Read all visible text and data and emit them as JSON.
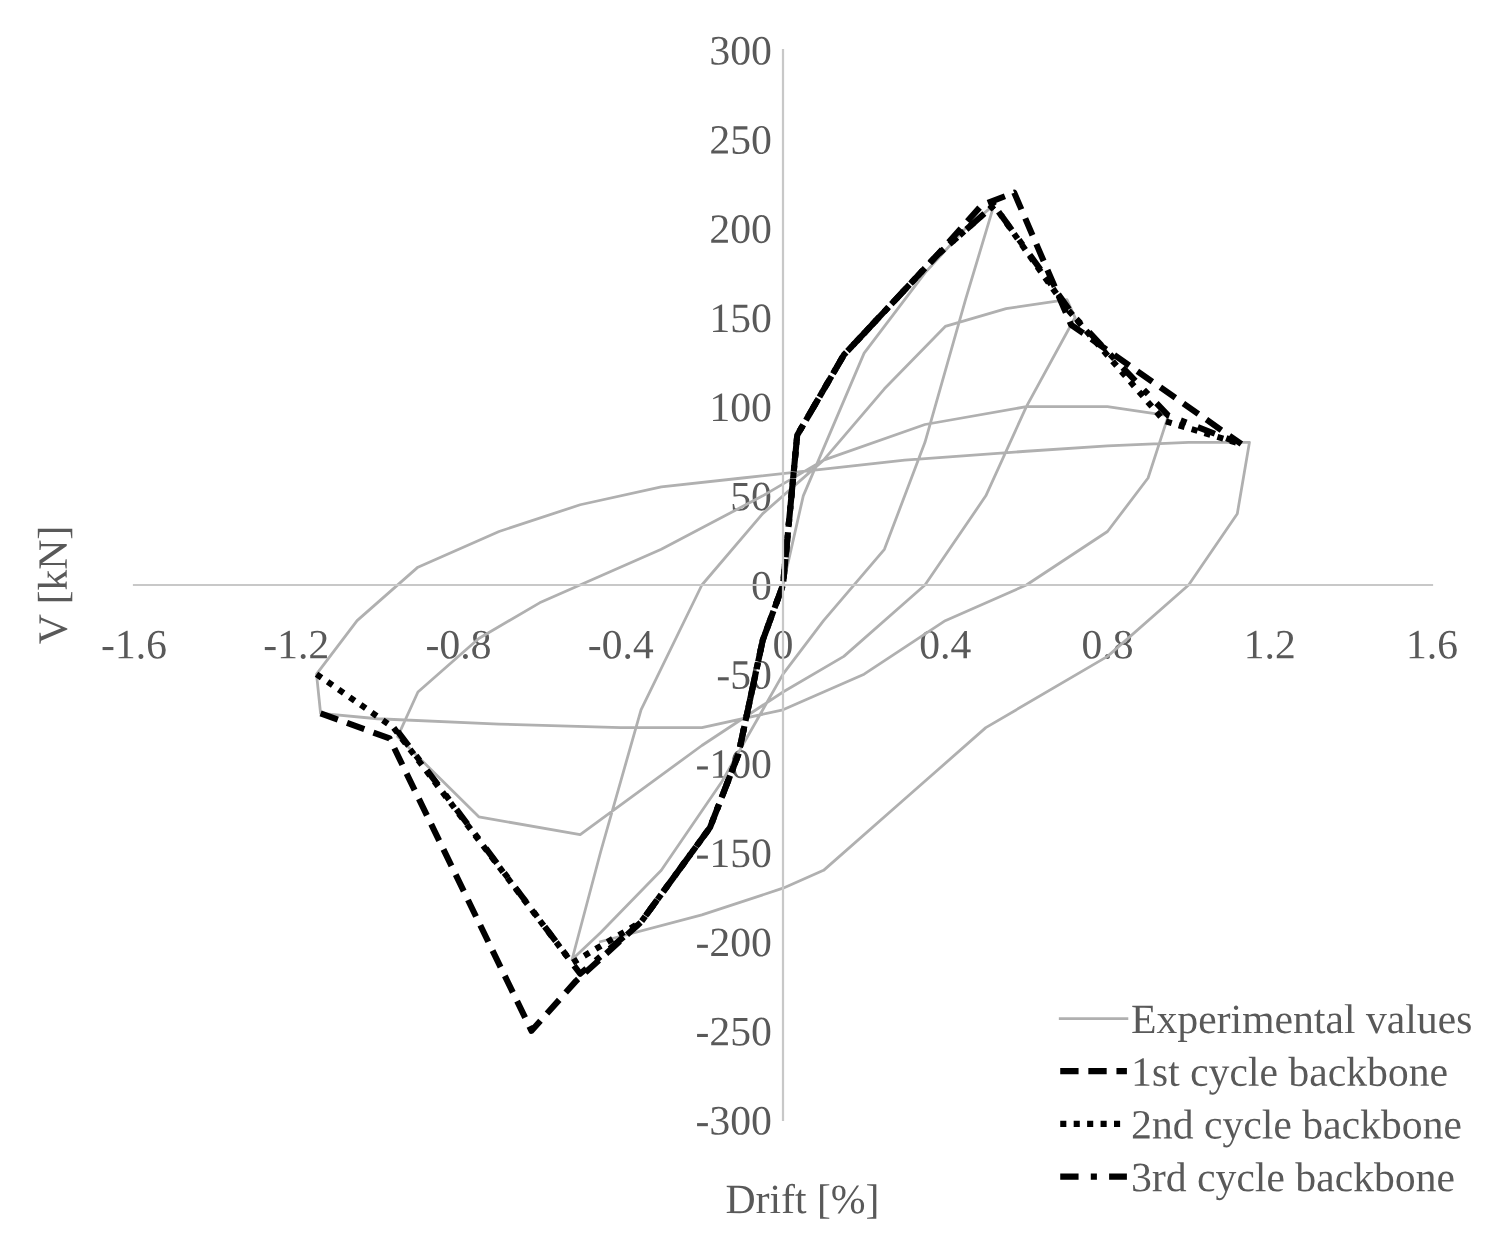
{
  "chart_data": {
    "type": "line",
    "xlabel": "Drift [%]",
    "ylabel": "V [kN]",
    "xlim": [
      -1.6,
      1.6
    ],
    "xticks": [
      -1.6,
      -1.2,
      -0.8,
      -0.4,
      0,
      0.4,
      0.8,
      1.2,
      1.6
    ],
    "ylim": [
      -300,
      300
    ],
    "yticks": [
      -300,
      -250,
      -200,
      -150,
      -100,
      -50,
      0,
      50,
      100,
      150,
      200,
      250,
      300
    ],
    "grid": false,
    "legend": "bottom right",
    "marker": "none",
    "series": [
      {
        "name": "Experimental values",
        "color": "#b0b0b0",
        "line_style": "solid",
        "x": [
          0,
          0.05,
          0.2,
          0.35,
          0.45,
          0.52,
          0.45,
          0.35,
          0.25,
          0.1,
          0,
          -0.15,
          -0.3,
          -0.45,
          -0.52,
          -0.45,
          -0.35,
          -0.2,
          -0.05,
          0.1,
          0.25,
          0.4,
          0.55,
          0.7,
          0.72,
          0.6,
          0.5,
          0.35,
          0.15,
          0,
          -0.2,
          -0.5,
          -0.75,
          -0.95,
          -0.9,
          -0.75,
          -0.6,
          -0.3,
          -0.05,
          0.1,
          0.35,
          0.6,
          0.8,
          0.95,
          0.9,
          0.8,
          0.6,
          0.4,
          0.2,
          0,
          -0.2,
          -0.4,
          -0.7,
          -1.0,
          -1.14,
          -1.15,
          -1.05,
          -0.9,
          -0.7,
          -0.5,
          -0.3,
          -0.1,
          0.1,
          0.3,
          0.6,
          0.8,
          1.0,
          1.15,
          1.12,
          1.0,
          0.8,
          0.5,
          0.3,
          0.1,
          0,
          -0.2,
          -0.45
        ],
        "values": [
          0,
          50,
          130,
          175,
          200,
          213,
          160,
          80,
          20,
          -20,
          -50,
          -110,
          -160,
          -195,
          -210,
          -150,
          -70,
          0,
          40,
          70,
          110,
          145,
          155,
          160,
          150,
          100,
          50,
          0,
          -40,
          -60,
          -90,
          -140,
          -130,
          -85,
          -60,
          -30,
          -10,
          20,
          50,
          70,
          90,
          100,
          100,
          95,
          60,
          30,
          0,
          -20,
          -50,
          -70,
          -80,
          -80,
          -78,
          -75,
          -72,
          -50,
          -20,
          10,
          30,
          45,
          55,
          60,
          65,
          70,
          75,
          78,
          80,
          80,
          40,
          0,
          -40,
          -80,
          -120,
          -160,
          -170,
          -185,
          -200
        ]
      },
      {
        "name": "1st cycle backbone",
        "color": "#000000",
        "line_style": "dashed",
        "x": [
          -1.14,
          -0.97,
          -0.62,
          -0.51,
          -0.35,
          -0.18,
          -0.11,
          -0.05,
          0,
          0.035,
          0.15,
          0.38,
          0.49,
          0.57,
          0.71,
          1.13
        ],
        "values": [
          -72,
          -86,
          -250,
          -222,
          -189,
          -136,
          -95,
          -31,
          0,
          84,
          129,
          185,
          213,
          220,
          146,
          79
        ]
      },
      {
        "name": "2nd cycle backbone",
        "color": "#000000",
        "line_style": "dotted",
        "x": [
          -1.15,
          -0.96,
          -0.52,
          -0.35,
          -0.18,
          -0.11,
          -0.05,
          0,
          0.035,
          0.15,
          0.38,
          0.52,
          0.7,
          0.94,
          1.13
        ],
        "values": [
          -50,
          -80,
          -212,
          -189,
          -136,
          -95,
          -31,
          0,
          84,
          129,
          185,
          213,
          155,
          92,
          79
        ]
      },
      {
        "name": "3rd cycle backbone",
        "color": "#000000",
        "line_style": "dashdot",
        "x": [
          -0.95,
          -0.5,
          -0.35,
          -0.18,
          -0.11,
          -0.05,
          0,
          0.035,
          0.15,
          0.38,
          0.52,
          0.72,
          0.95,
          1.13
        ],
        "values": [
          -82,
          -218,
          -189,
          -136,
          -95,
          -31,
          0,
          84,
          129,
          185,
          213,
          150,
          95,
          79
        ]
      }
    ]
  }
}
